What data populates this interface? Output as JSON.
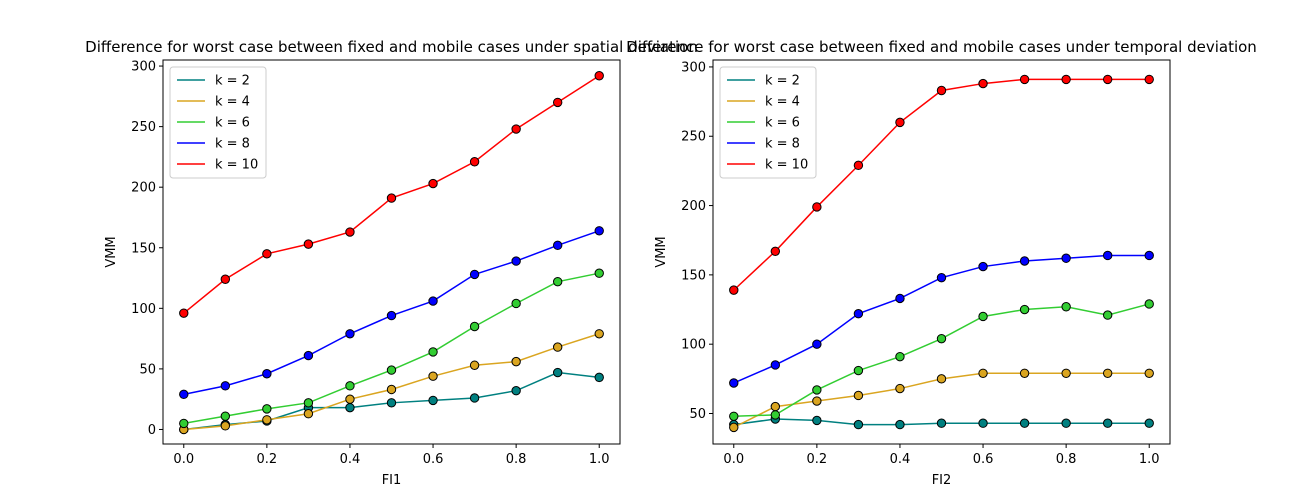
{
  "chart_data": [
    {
      "type": "line",
      "title": "Difference for worst case between fixed and mobile cases under spatial deviation",
      "xlabel": "FI1",
      "ylabel": "VMM",
      "xlim": [
        -0.05,
        1.05
      ],
      "ylim": [
        -12,
        305
      ],
      "xticks": [
        0.0,
        0.2,
        0.4,
        0.6,
        0.8,
        1.0
      ],
      "xtick_labels": [
        "0.0",
        "0.2",
        "0.4",
        "0.6",
        "0.8",
        "1.0"
      ],
      "yticks": [
        0,
        50,
        100,
        150,
        200,
        250,
        300
      ],
      "ytick_labels": [
        "0",
        "50",
        "100",
        "150",
        "200",
        "250",
        "300"
      ],
      "legend_position": "top-left",
      "grid": false,
      "x": [
        0.0,
        0.1,
        0.2,
        0.3,
        0.4,
        0.5,
        0.6,
        0.7,
        0.8,
        0.9,
        1.0
      ],
      "series": [
        {
          "name": "k = 2",
          "color": "#008080",
          "values": [
            0,
            4,
            7,
            18,
            18,
            22,
            24,
            26,
            32,
            47,
            43
          ]
        },
        {
          "name": "k = 4",
          "color": "#DAA520",
          "values": [
            0,
            3,
            8,
            13,
            25,
            33,
            44,
            53,
            56,
            68,
            79
          ]
        },
        {
          "name": "k = 6",
          "color": "#32CD32",
          "values": [
            5,
            11,
            17,
            22,
            36,
            49,
            64,
            85,
            104,
            122,
            129
          ]
        },
        {
          "name": "k = 8",
          "color": "#0000FF",
          "values": [
            29,
            36,
            46,
            61,
            79,
            94,
            106,
            128,
            139,
            152,
            164
          ]
        },
        {
          "name": "k = 10",
          "color": "#FF0000",
          "values": [
            96,
            124,
            145,
            153,
            163,
            191,
            203,
            221,
            248,
            270,
            292
          ]
        }
      ]
    },
    {
      "type": "line",
      "title": "Difference for worst case between fixed and mobile cases under temporal deviation",
      "xlabel": "FI2",
      "ylabel": "VMM",
      "xlim": [
        -0.05,
        1.05
      ],
      "ylim": [
        28,
        305
      ],
      "xticks": [
        0.0,
        0.2,
        0.4,
        0.6,
        0.8,
        1.0
      ],
      "xtick_labels": [
        "0.0",
        "0.2",
        "0.4",
        "0.6",
        "0.8",
        "1.0"
      ],
      "yticks": [
        50,
        100,
        150,
        200,
        250,
        300
      ],
      "ytick_labels": [
        "50",
        "100",
        "150",
        "200",
        "250",
        "300"
      ],
      "legend_position": "top-left",
      "grid": false,
      "x": [
        0.0,
        0.1,
        0.2,
        0.3,
        0.4,
        0.5,
        0.6,
        0.7,
        0.8,
        0.9,
        1.0
      ],
      "series": [
        {
          "name": "k = 2",
          "color": "#008080",
          "values": [
            42,
            46,
            45,
            42,
            42,
            43,
            43,
            43,
            43,
            43,
            43
          ]
        },
        {
          "name": "k = 4",
          "color": "#DAA520",
          "values": [
            40,
            55,
            59,
            63,
            68,
            75,
            79,
            79,
            79,
            79,
            79
          ]
        },
        {
          "name": "k = 6",
          "color": "#32CD32",
          "values": [
            48,
            49,
            67,
            81,
            91,
            104,
            120,
            125,
            127,
            121,
            129
          ]
        },
        {
          "name": "k = 8",
          "color": "#0000FF",
          "values": [
            72,
            85,
            100,
            122,
            133,
            148,
            156,
            160,
            162,
            164,
            164
          ]
        },
        {
          "name": "k = 10",
          "color": "#FF0000",
          "values": [
            139,
            167,
            199,
            229,
            260,
            283,
            288,
            291,
            291,
            291,
            291
          ]
        }
      ]
    }
  ]
}
